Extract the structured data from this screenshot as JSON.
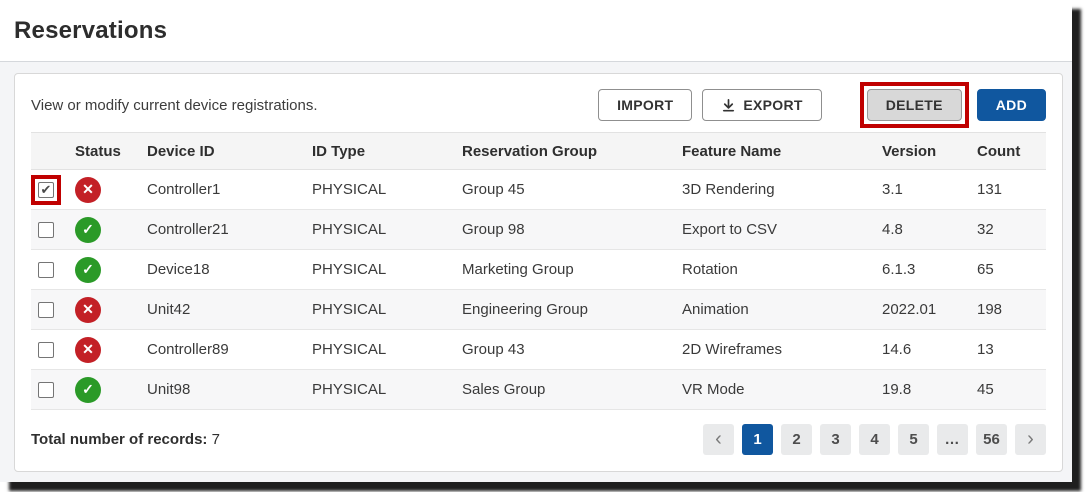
{
  "page": {
    "title": "Reservations"
  },
  "panel": {
    "description": "View or modify current device registrations.",
    "toolbar": {
      "import_label": "IMPORT",
      "export_label": "EXPORT",
      "delete_label": "DELETE",
      "add_label": "ADD"
    }
  },
  "table": {
    "columns": [
      "Status",
      "Device ID",
      "ID Type",
      "Reservation Group",
      "Feature Name",
      "Version",
      "Count"
    ],
    "rows": [
      {
        "checked": true,
        "annotated": true,
        "status": "error",
        "device_id": "Controller1",
        "id_type": "PHYSICAL",
        "reservation_group": "Group 45",
        "feature_name": "3D Rendering",
        "version": "3.1",
        "count": "131"
      },
      {
        "checked": false,
        "annotated": false,
        "status": "ok",
        "device_id": "Controller21",
        "id_type": "PHYSICAL",
        "reservation_group": "Group 98",
        "feature_name": "Export to CSV",
        "version": "4.8",
        "count": "32"
      },
      {
        "checked": false,
        "annotated": false,
        "status": "ok",
        "device_id": "Device18",
        "id_type": "PHYSICAL",
        "reservation_group": "Marketing Group",
        "feature_name": "Rotation",
        "version": "6.1.3",
        "count": "65"
      },
      {
        "checked": false,
        "annotated": false,
        "status": "error",
        "device_id": "Unit42",
        "id_type": "PHYSICAL",
        "reservation_group": "Engineering Group",
        "feature_name": "Animation",
        "version": "2022.01",
        "count": "198"
      },
      {
        "checked": false,
        "annotated": false,
        "status": "error",
        "device_id": "Controller89",
        "id_type": "PHYSICAL",
        "reservation_group": "Group 43",
        "feature_name": "2D Wireframes",
        "version": "14.6",
        "count": "13"
      },
      {
        "checked": false,
        "annotated": false,
        "status": "ok",
        "device_id": "Unit98",
        "id_type": "PHYSICAL",
        "reservation_group": "Sales Group",
        "feature_name": "VR Mode",
        "version": "19.8",
        "count": "45"
      }
    ]
  },
  "footer": {
    "total_label": "Total number of records:",
    "total_value": "7",
    "pagination": {
      "prev": "‹",
      "next": "›",
      "pages": [
        "1",
        "2",
        "3",
        "4",
        "5",
        "…",
        "56"
      ],
      "active": "1",
      "ellipsis": "…"
    }
  },
  "icons": {
    "status_ok": "✓",
    "status_error": "✕",
    "checkbox_check": "✔",
    "download": "download-icon"
  },
  "colors": {
    "primary_blue": "#10579f",
    "annotation_red": "#c00000",
    "status_ok_green": "#2b9a28",
    "status_error_red": "#c32026"
  }
}
